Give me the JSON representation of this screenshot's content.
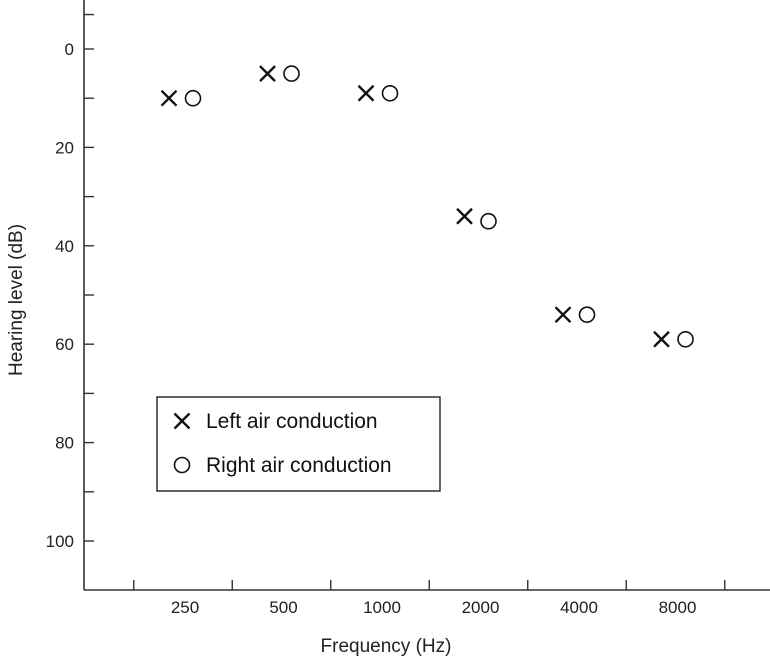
{
  "chart_data": {
    "type": "scatter",
    "xlabel": "Frequency (Hz)",
    "ylabel": "Hearing level (dB)",
    "categories": [
      "250",
      "500",
      "1000",
      "2000",
      "4000",
      "8000"
    ],
    "yticks": [
      "0",
      "20",
      "40",
      "60",
      "80",
      "100"
    ],
    "ylim": [
      -9,
      110
    ],
    "y_inverted": true,
    "grid": false,
    "legend_position": "bottom-left",
    "series": [
      {
        "name": "Left air conduction",
        "marker": "x",
        "color": "#111111",
        "values": [
          10,
          5,
          9,
          34,
          54,
          59
        ]
      },
      {
        "name": "Right air conduction",
        "marker": "o",
        "color": "#111111",
        "values": [
          10,
          5,
          9,
          35,
          54,
          59
        ]
      }
    ]
  }
}
